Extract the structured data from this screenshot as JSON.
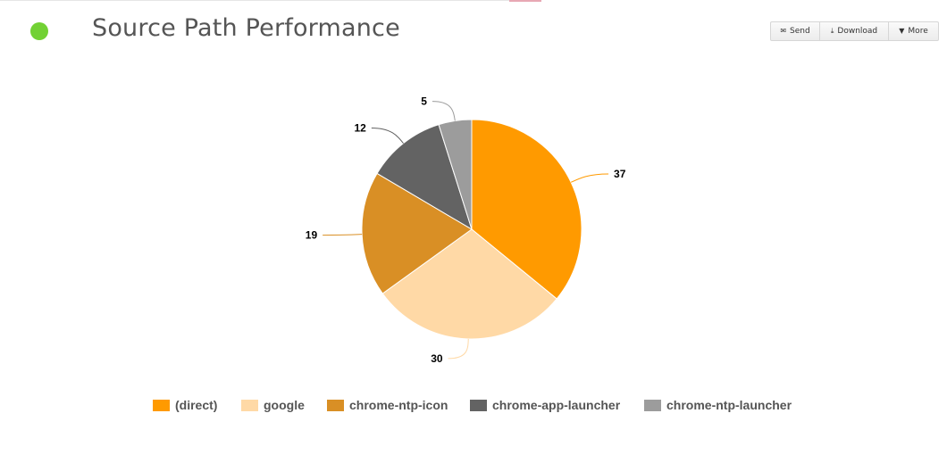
{
  "header": {
    "title": "Source Path Performance",
    "status_color": "#72d134"
  },
  "toolbar": {
    "send_label": "Send",
    "send_icon": "envelope-icon",
    "download_label": "Download",
    "download_icon": "download-icon",
    "more_label": "More",
    "more_icon": "caret-down-icon"
  },
  "chart_data": {
    "type": "pie",
    "title": "",
    "categories": [
      "(direct)",
      "google",
      "chrome-ntp-icon",
      "chrome-app-launcher",
      "chrome-ntp-launcher"
    ],
    "values": [
      37,
      30,
      19,
      12,
      5
    ],
    "data_labels": [
      "37",
      "30",
      "19",
      "12",
      "5"
    ],
    "colors": [
      "#ff9a00",
      "#ffd9a6",
      "#d98f25",
      "#636363",
      "#9c9c9c"
    ],
    "legend_position": "bottom-center",
    "start_angle_deg": 0,
    "direction": "clockwise"
  }
}
